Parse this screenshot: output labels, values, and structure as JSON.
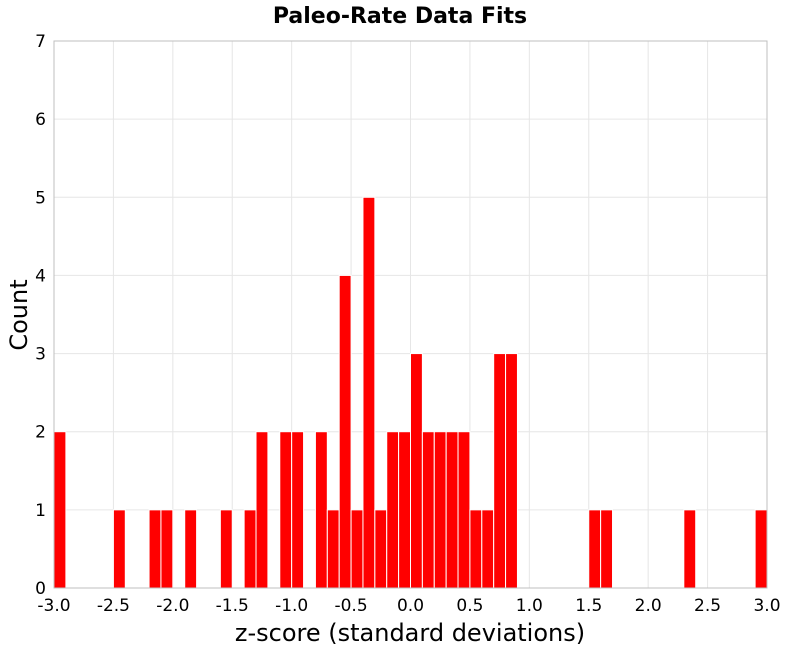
{
  "chart_data": {
    "type": "bar",
    "title": "Paleo-Rate Data Fits",
    "xlabel": "z-score (standard deviations)",
    "ylabel": "Count",
    "xlim": [
      -3.0,
      3.0
    ],
    "ylim": [
      0,
      7
    ],
    "bin_width": 0.1,
    "x_ticks": [
      "-3.0",
      "-2.5",
      "-2.0",
      "-1.5",
      "-1.0",
      "-0.5",
      "0.0",
      "0.5",
      "1.0",
      "1.5",
      "2.0",
      "2.5",
      "3.0"
    ],
    "y_ticks": [
      "0",
      "1",
      "2",
      "3",
      "4",
      "5",
      "6",
      "7"
    ],
    "grid": true,
    "bar_color": "#ff0000",
    "bins": [
      {
        "x": -2.95,
        "count": 2
      },
      {
        "x": -2.45,
        "count": 1
      },
      {
        "x": -2.15,
        "count": 1
      },
      {
        "x": -2.05,
        "count": 1
      },
      {
        "x": -1.85,
        "count": 1
      },
      {
        "x": -1.55,
        "count": 1
      },
      {
        "x": -1.35,
        "count": 1
      },
      {
        "x": -1.25,
        "count": 2
      },
      {
        "x": -1.05,
        "count": 2
      },
      {
        "x": -0.95,
        "count": 2
      },
      {
        "x": -0.75,
        "count": 2
      },
      {
        "x": -0.65,
        "count": 1
      },
      {
        "x": -0.55,
        "count": 4
      },
      {
        "x": -0.45,
        "count": 1
      },
      {
        "x": -0.35,
        "count": 5
      },
      {
        "x": -0.25,
        "count": 1
      },
      {
        "x": -0.15,
        "count": 2
      },
      {
        "x": -0.05,
        "count": 2
      },
      {
        "x": 0.05,
        "count": 3
      },
      {
        "x": 0.15,
        "count": 2
      },
      {
        "x": 0.25,
        "count": 2
      },
      {
        "x": 0.35,
        "count": 2
      },
      {
        "x": 0.45,
        "count": 2
      },
      {
        "x": 0.55,
        "count": 1
      },
      {
        "x": 0.65,
        "count": 1
      },
      {
        "x": 0.75,
        "count": 3
      },
      {
        "x": 0.85,
        "count": 3
      },
      {
        "x": 1.55,
        "count": 1
      },
      {
        "x": 1.65,
        "count": 1
      },
      {
        "x": 2.35,
        "count": 1
      },
      {
        "x": 2.95,
        "count": 1
      }
    ]
  }
}
